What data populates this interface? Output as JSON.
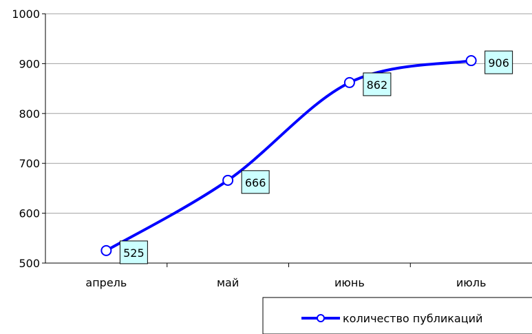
{
  "chart_data": {
    "type": "line",
    "categories": [
      "апрель",
      "май",
      "июнь",
      "июль"
    ],
    "series": [
      {
        "name": "количество публикаций",
        "values": [
          525,
          666,
          862,
          906
        ],
        "color": "#0000ff"
      }
    ],
    "data_labels": [
      "525",
      "666",
      "862",
      "906"
    ],
    "ylim": [
      500,
      1000
    ],
    "y_ticks": [
      "500",
      "600",
      "700",
      "800",
      "900",
      "1000"
    ],
    "grid": "horizontal",
    "legend_position": "bottom-right",
    "data_label_background": "#ccffff"
  }
}
